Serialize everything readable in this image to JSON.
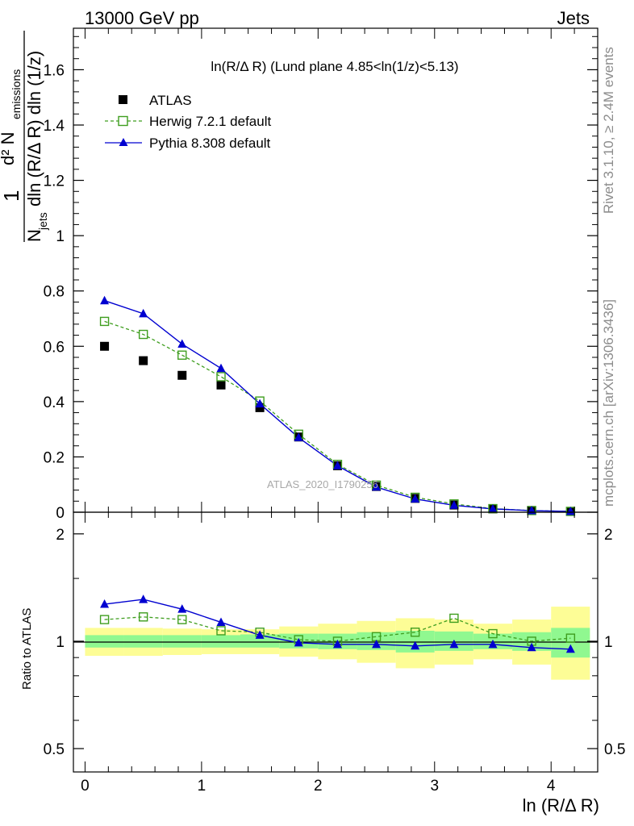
{
  "header": {
    "energy_label": "13000 GeV pp",
    "category_label": "Jets"
  },
  "side_labels": {
    "rivet": "Rivet 3.1.10, ≥ 2.4M events",
    "mcplots": "mcplots.cern.ch [arXiv:1306.3436]"
  },
  "watermark": "ATLAS_2020_I1790256",
  "chart_data": [
    {
      "type": "scatter",
      "panel": "main",
      "title": "ln(R/Δ R) (Lund plane 4.85<ln(1/z)<5.13)",
      "ylabel": {
        "numerator": "d² N",
        "numerator_sub": "emissions",
        "prefix": "1",
        "denominator": "N",
        "denominator_sub": "jets",
        "denominator_rest": "dln (R/Δ R) dln (1/z)"
      },
      "xlabel": "ln (R/Δ R)",
      "xlim": [
        -0.1,
        4.4
      ],
      "ylim": [
        0,
        1.75
      ],
      "xticks": [
        0,
        1,
        2,
        3,
        4
      ],
      "xtick_labels": [
        "0",
        "1",
        "2",
        "3",
        "4"
      ],
      "yticks": [
        0,
        0.2,
        0.4,
        0.6,
        0.8,
        1,
        1.2,
        1.4,
        1.6
      ],
      "ytick_labels": [
        "0",
        "0.2",
        "0.4",
        "0.6",
        "0.8",
        "1",
        "1.2",
        "1.4",
        "1.6"
      ],
      "legend_position": "top-left",
      "x": [
        0.167,
        0.5,
        0.833,
        1.167,
        1.5,
        1.833,
        2.167,
        2.5,
        2.833,
        3.167,
        3.5,
        3.833,
        4.167
      ],
      "series": [
        {
          "name": "ATLAS",
          "style": "data-square",
          "color": "#000000",
          "values": [
            0.6,
            0.548,
            0.495,
            0.46,
            0.378,
            0.272,
            0.168,
            0.093,
            0.05,
            0.026,
            0.012,
            0.006,
            0.003
          ]
        },
        {
          "name": "Herwig 7.2.1 default",
          "style": "open-square-dashed",
          "color": "#3f9e1f",
          "values": [
            0.69,
            0.643,
            0.568,
            0.49,
            0.402,
            0.282,
            0.173,
            0.098,
            0.054,
            0.03,
            0.013,
            0.006,
            0.003
          ]
        },
        {
          "name": "Pythia 8.308 default",
          "style": "triangle-solid",
          "color": "#0000d0",
          "values": [
            0.765,
            0.718,
            0.608,
            0.52,
            0.392,
            0.27,
            0.168,
            0.091,
            0.048,
            0.025,
            0.012,
            0.0057,
            0.0029
          ]
        }
      ]
    },
    {
      "type": "scatter",
      "panel": "ratio",
      "ylabel": "Ratio to ATLAS",
      "yscale": "log",
      "ylim": [
        0.43,
        2.3
      ],
      "yticks": [
        0.5,
        1,
        2
      ],
      "ytick_labels": [
        "0.5",
        "1",
        "2"
      ],
      "x_edges": [
        0,
        0.333,
        0.667,
        1.0,
        1.333,
        1.667,
        2.0,
        2.333,
        2.667,
        3.0,
        3.333,
        3.667,
        4.0,
        4.333
      ],
      "band_inner": {
        "color": "#90f890",
        "lo": [
          0.96,
          0.96,
          0.96,
          0.96,
          0.96,
          0.955,
          0.95,
          0.945,
          0.93,
          0.94,
          0.95,
          0.94,
          0.9
        ],
        "hi": [
          1.04,
          1.04,
          1.04,
          1.04,
          1.045,
          1.05,
          1.05,
          1.06,
          1.07,
          1.065,
          1.05,
          1.06,
          1.09
        ]
      },
      "band_outer": {
        "color": "#fdfd96",
        "lo": [
          0.91,
          0.91,
          0.915,
          0.92,
          0.92,
          0.905,
          0.89,
          0.87,
          0.84,
          0.86,
          0.89,
          0.86,
          0.78
        ],
        "hi": [
          1.09,
          1.09,
          1.085,
          1.08,
          1.08,
          1.1,
          1.12,
          1.14,
          1.16,
          1.15,
          1.12,
          1.15,
          1.25
        ]
      },
      "x": [
        0.167,
        0.5,
        0.833,
        1.167,
        1.5,
        1.833,
        2.167,
        2.5,
        2.833,
        3.167,
        3.5,
        3.833,
        4.167
      ],
      "series": [
        {
          "name": "Herwig 7.2.1 default",
          "style": "open-square-dashed",
          "color": "#3f9e1f",
          "values": [
            1.15,
            1.17,
            1.15,
            1.07,
            1.06,
            1.01,
            1.0,
            1.03,
            1.06,
            1.16,
            1.05,
            1.0,
            1.02
          ]
        },
        {
          "name": "Pythia 8.308 default",
          "style": "triangle-solid",
          "color": "#0000d0",
          "values": [
            1.27,
            1.31,
            1.23,
            1.13,
            1.04,
            0.99,
            0.98,
            0.98,
            0.97,
            0.98,
            0.98,
            0.96,
            0.95
          ]
        }
      ]
    }
  ]
}
